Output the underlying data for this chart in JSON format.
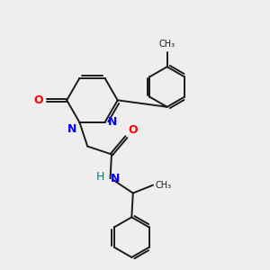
{
  "bg_color": "#eeeeee",
  "bond_color": "#1a1a1a",
  "nitrogen_color": "#0000ff",
  "oxygen_color": "#ff0000",
  "nh_color": "#008080",
  "font_size": 8,
  "lw": 1.4,
  "xlim": [
    0,
    10
  ],
  "ylim": [
    0,
    10
  ]
}
